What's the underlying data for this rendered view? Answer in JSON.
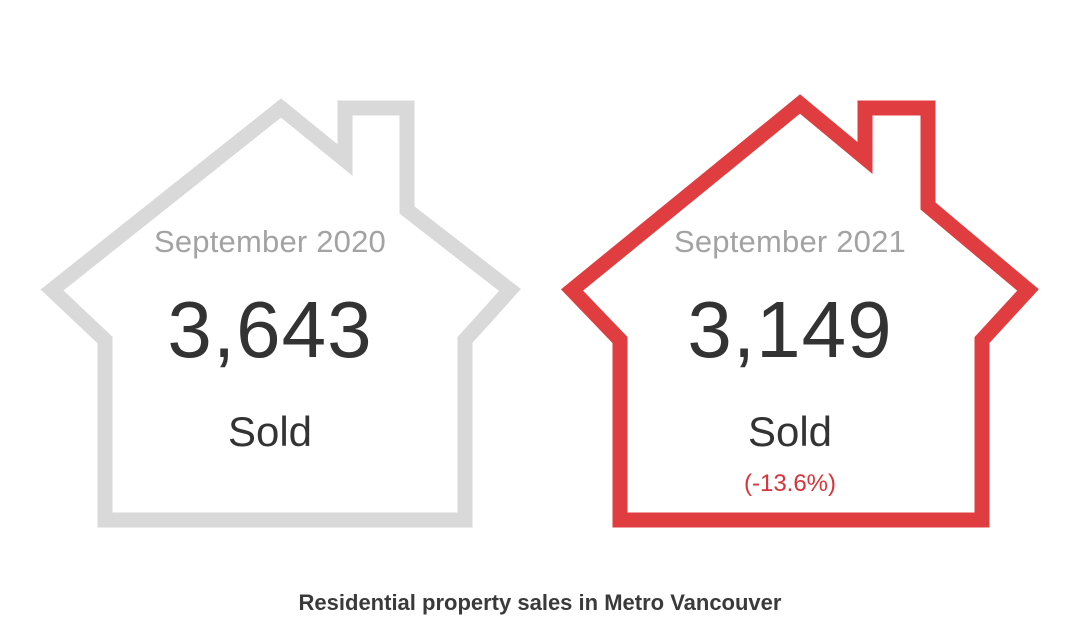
{
  "colors": {
    "house_previous": "#d9d9d9",
    "house_current": "#e03d40",
    "change_text": "#d7343a"
  },
  "icons": {
    "house_previous": "house-outline-icon",
    "house_current": "house-outline-icon"
  },
  "previous": {
    "period": "September 2020",
    "count": "3,643",
    "label": "Sold"
  },
  "current": {
    "period": "September 2021",
    "count": "3,149",
    "label": "Sold",
    "change": "(-13.6%)"
  },
  "caption": "Residential property sales in Metro Vancouver"
}
